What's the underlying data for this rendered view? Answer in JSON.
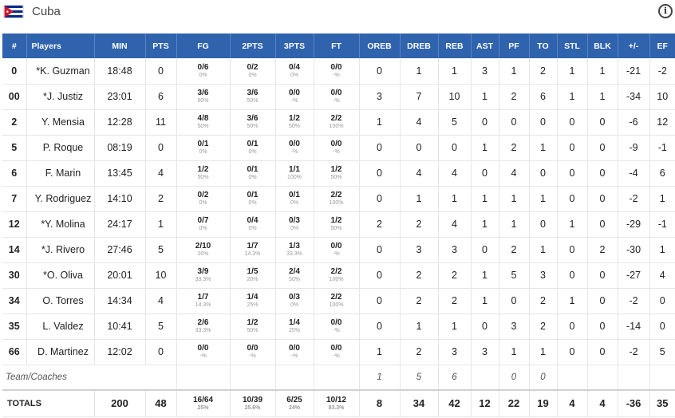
{
  "team": {
    "name": "Cuba",
    "flag": {
      "blue": "#002a8f",
      "white": "#ffffff",
      "red": "#cf142b"
    },
    "info_icon": "i"
  },
  "columns": [
    "#",
    "Players",
    "MIN",
    "PTS",
    "FG",
    "2PTS",
    "3PTS",
    "FT",
    "OREB",
    "DREB",
    "REB",
    "AST",
    "PF",
    "TO",
    "STL",
    "BLK",
    "+/-",
    "EF"
  ],
  "players": [
    {
      "num": "0",
      "name": "*K. Guzman",
      "min": "18:48",
      "pts": "0",
      "fg": [
        "0/6",
        "0%"
      ],
      "p2": [
        "0/2",
        "0%"
      ],
      "p3": [
        "0/4",
        "0%"
      ],
      "ft": [
        "0/0",
        "-%"
      ],
      "oreb": "0",
      "dreb": "1",
      "reb": "1",
      "ast": "3",
      "pf": "1",
      "to": "2",
      "stl": "1",
      "blk": "1",
      "pm": "-21",
      "ef": "-2"
    },
    {
      "num": "00",
      "name": "*J. Justiz",
      "min": "23:01",
      "pts": "6",
      "fg": [
        "3/6",
        "50%"
      ],
      "p2": [
        "3/6",
        "50%"
      ],
      "p3": [
        "0/0",
        "-%"
      ],
      "ft": [
        "0/0",
        "-%"
      ],
      "oreb": "3",
      "dreb": "7",
      "reb": "10",
      "ast": "1",
      "pf": "2",
      "to": "6",
      "stl": "1",
      "blk": "1",
      "pm": "-34",
      "ef": "10"
    },
    {
      "num": "2",
      "name": "Y. Mensia",
      "min": "12:28",
      "pts": "11",
      "fg": [
        "4/8",
        "50%"
      ],
      "p2": [
        "3/6",
        "50%"
      ],
      "p3": [
        "1/2",
        "50%"
      ],
      "ft": [
        "2/2",
        "100%"
      ],
      "oreb": "1",
      "dreb": "4",
      "reb": "5",
      "ast": "0",
      "pf": "0",
      "to": "0",
      "stl": "0",
      "blk": "0",
      "pm": "-6",
      "ef": "12"
    },
    {
      "num": "5",
      "name": "P. Roque",
      "min": "08:19",
      "pts": "0",
      "fg": [
        "0/1",
        "0%"
      ],
      "p2": [
        "0/1",
        "0%"
      ],
      "p3": [
        "0/0",
        "-%"
      ],
      "ft": [
        "0/0",
        "-%"
      ],
      "oreb": "0",
      "dreb": "0",
      "reb": "0",
      "ast": "1",
      "pf": "2",
      "to": "1",
      "stl": "0",
      "blk": "0",
      "pm": "-9",
      "ef": "-1"
    },
    {
      "num": "6",
      "name": "F. Marin",
      "min": "13:45",
      "pts": "4",
      "fg": [
        "1/2",
        "50%"
      ],
      "p2": [
        "0/1",
        "0%"
      ],
      "p3": [
        "1/1",
        "100%"
      ],
      "ft": [
        "1/2",
        "50%"
      ],
      "oreb": "0",
      "dreb": "4",
      "reb": "4",
      "ast": "0",
      "pf": "4",
      "to": "0",
      "stl": "0",
      "blk": "0",
      "pm": "-4",
      "ef": "6"
    },
    {
      "num": "7",
      "name": "Y. Rodriguez",
      "min": "14:10",
      "pts": "2",
      "fg": [
        "0/2",
        "0%"
      ],
      "p2": [
        "0/1",
        "0%"
      ],
      "p3": [
        "0/1",
        "0%"
      ],
      "ft": [
        "2/2",
        "100%"
      ],
      "oreb": "0",
      "dreb": "1",
      "reb": "1",
      "ast": "1",
      "pf": "1",
      "to": "1",
      "stl": "0",
      "blk": "0",
      "pm": "-2",
      "ef": "1"
    },
    {
      "num": "12",
      "name": "*Y. Molina",
      "min": "24:17",
      "pts": "1",
      "fg": [
        "0/7",
        "0%"
      ],
      "p2": [
        "0/4",
        "0%"
      ],
      "p3": [
        "0/3",
        "0%"
      ],
      "ft": [
        "1/2",
        "50%"
      ],
      "oreb": "2",
      "dreb": "2",
      "reb": "4",
      "ast": "1",
      "pf": "1",
      "to": "0",
      "stl": "1",
      "blk": "0",
      "pm": "-29",
      "ef": "-1"
    },
    {
      "num": "14",
      "name": "*J. Rivero",
      "min": "27:46",
      "pts": "5",
      "fg": [
        "2/10",
        "20%"
      ],
      "p2": [
        "1/7",
        "14.3%"
      ],
      "p3": [
        "1/3",
        "33.3%"
      ],
      "ft": [
        "0/0",
        "-%"
      ],
      "oreb": "0",
      "dreb": "3",
      "reb": "3",
      "ast": "0",
      "pf": "2",
      "to": "1",
      "stl": "0",
      "blk": "2",
      "pm": "-30",
      "ef": "1"
    },
    {
      "num": "30",
      "name": "*O. Oliva",
      "min": "20:01",
      "pts": "10",
      "fg": [
        "3/9",
        "33.3%"
      ],
      "p2": [
        "1/5",
        "20%"
      ],
      "p3": [
        "2/4",
        "50%"
      ],
      "ft": [
        "2/2",
        "100%"
      ],
      "oreb": "0",
      "dreb": "2",
      "reb": "2",
      "ast": "1",
      "pf": "5",
      "to": "3",
      "stl": "0",
      "blk": "0",
      "pm": "-27",
      "ef": "4"
    },
    {
      "num": "34",
      "name": "O. Torres",
      "min": "14:34",
      "pts": "4",
      "fg": [
        "1/7",
        "14.3%"
      ],
      "p2": [
        "1/4",
        "25%"
      ],
      "p3": [
        "0/3",
        "0%"
      ],
      "ft": [
        "2/2",
        "100%"
      ],
      "oreb": "0",
      "dreb": "2",
      "reb": "2",
      "ast": "1",
      "pf": "0",
      "to": "2",
      "stl": "1",
      "blk": "0",
      "pm": "-2",
      "ef": "0"
    },
    {
      "num": "35",
      "name": "L. Valdez",
      "min": "10:41",
      "pts": "5",
      "fg": [
        "2/6",
        "33.3%"
      ],
      "p2": [
        "1/2",
        "50%"
      ],
      "p3": [
        "1/4",
        "25%"
      ],
      "ft": [
        "0/0",
        "-%"
      ],
      "oreb": "0",
      "dreb": "1",
      "reb": "1",
      "ast": "0",
      "pf": "3",
      "to": "2",
      "stl": "0",
      "blk": "0",
      "pm": "-14",
      "ef": "0"
    },
    {
      "num": "66",
      "name": "D. Martinez",
      "min": "12:02",
      "pts": "0",
      "fg": [
        "0/0",
        "-%"
      ],
      "p2": [
        "0/0",
        "-%"
      ],
      "p3": [
        "0/0",
        "-%"
      ],
      "ft": [
        "0/0",
        "-%"
      ],
      "oreb": "1",
      "dreb": "2",
      "reb": "3",
      "ast": "3",
      "pf": "1",
      "to": "1",
      "stl": "0",
      "blk": "0",
      "pm": "-2",
      "ef": "5"
    }
  ],
  "team_coaches": {
    "label": "Team/Coaches",
    "oreb": "1",
    "dreb": "5",
    "reb": "6",
    "pf": "0",
    "to": "0"
  },
  "totals": {
    "label": "TOTALS",
    "min": "200",
    "pts": "48",
    "fg": [
      "16/64",
      "25%"
    ],
    "p2": [
      "10/39",
      "25.6%"
    ],
    "p3": [
      "6/25",
      "24%"
    ],
    "ft": [
      "10/12",
      "83.3%"
    ],
    "oreb": "8",
    "dreb": "34",
    "reb": "42",
    "ast": "12",
    "pf": "22",
    "to": "19",
    "stl": "4",
    "blk": "4",
    "pm": "-36",
    "ef": "35"
  }
}
